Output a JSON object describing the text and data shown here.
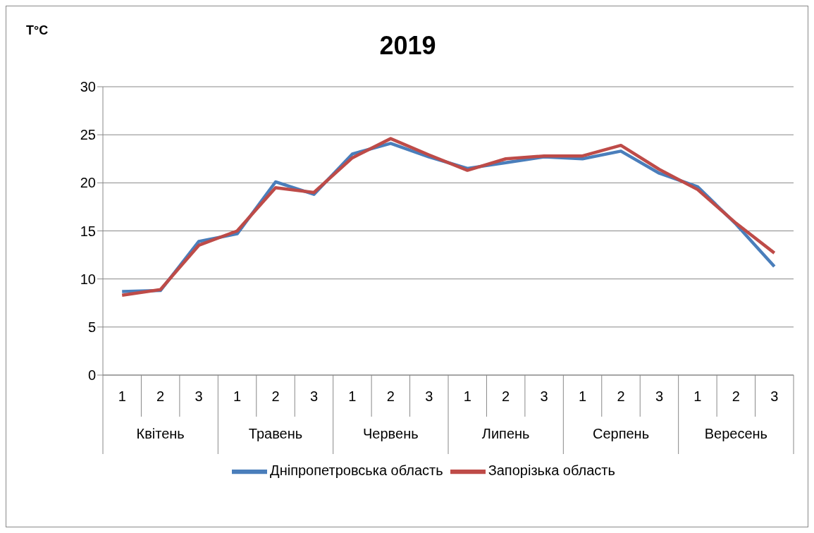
{
  "chart_data": {
    "type": "line",
    "title": "2019",
    "ylabel": "T°C",
    "categories": [
      "1",
      "2",
      "3",
      "1",
      "2",
      "3",
      "1",
      "2",
      "3",
      "1",
      "2",
      "3",
      "1",
      "2",
      "3",
      "1",
      "2",
      "3"
    ],
    "annotations": [
      "Квітень",
      "Травень",
      "Червень",
      "Липень",
      "Серпень",
      "Вересень"
    ],
    "series": [
      {
        "name": "Дніпропетровська область",
        "color": "#4a7ebb",
        "values": [
          8.7,
          8.8,
          13.9,
          14.7,
          20.1,
          18.8,
          23.0,
          24.1,
          22.7,
          21.5,
          22.1,
          22.7,
          22.5,
          23.3,
          21.0,
          19.6,
          15.7,
          11.3
        ]
      },
      {
        "name": "Запорізька область",
        "color": "#be4b48",
        "values": [
          8.3,
          8.9,
          13.5,
          15.0,
          19.5,
          19.0,
          22.6,
          24.6,
          22.9,
          21.3,
          22.5,
          22.8,
          22.8,
          23.9,
          21.4,
          19.3,
          15.8,
          12.7
        ]
      }
    ],
    "ylim": [
      0,
      30
    ],
    "yticks": [
      0,
      5,
      10,
      15,
      20,
      25,
      30
    ],
    "grid": "y",
    "legend": "bottom",
    "marker": "none",
    "line_style": "solid"
  }
}
